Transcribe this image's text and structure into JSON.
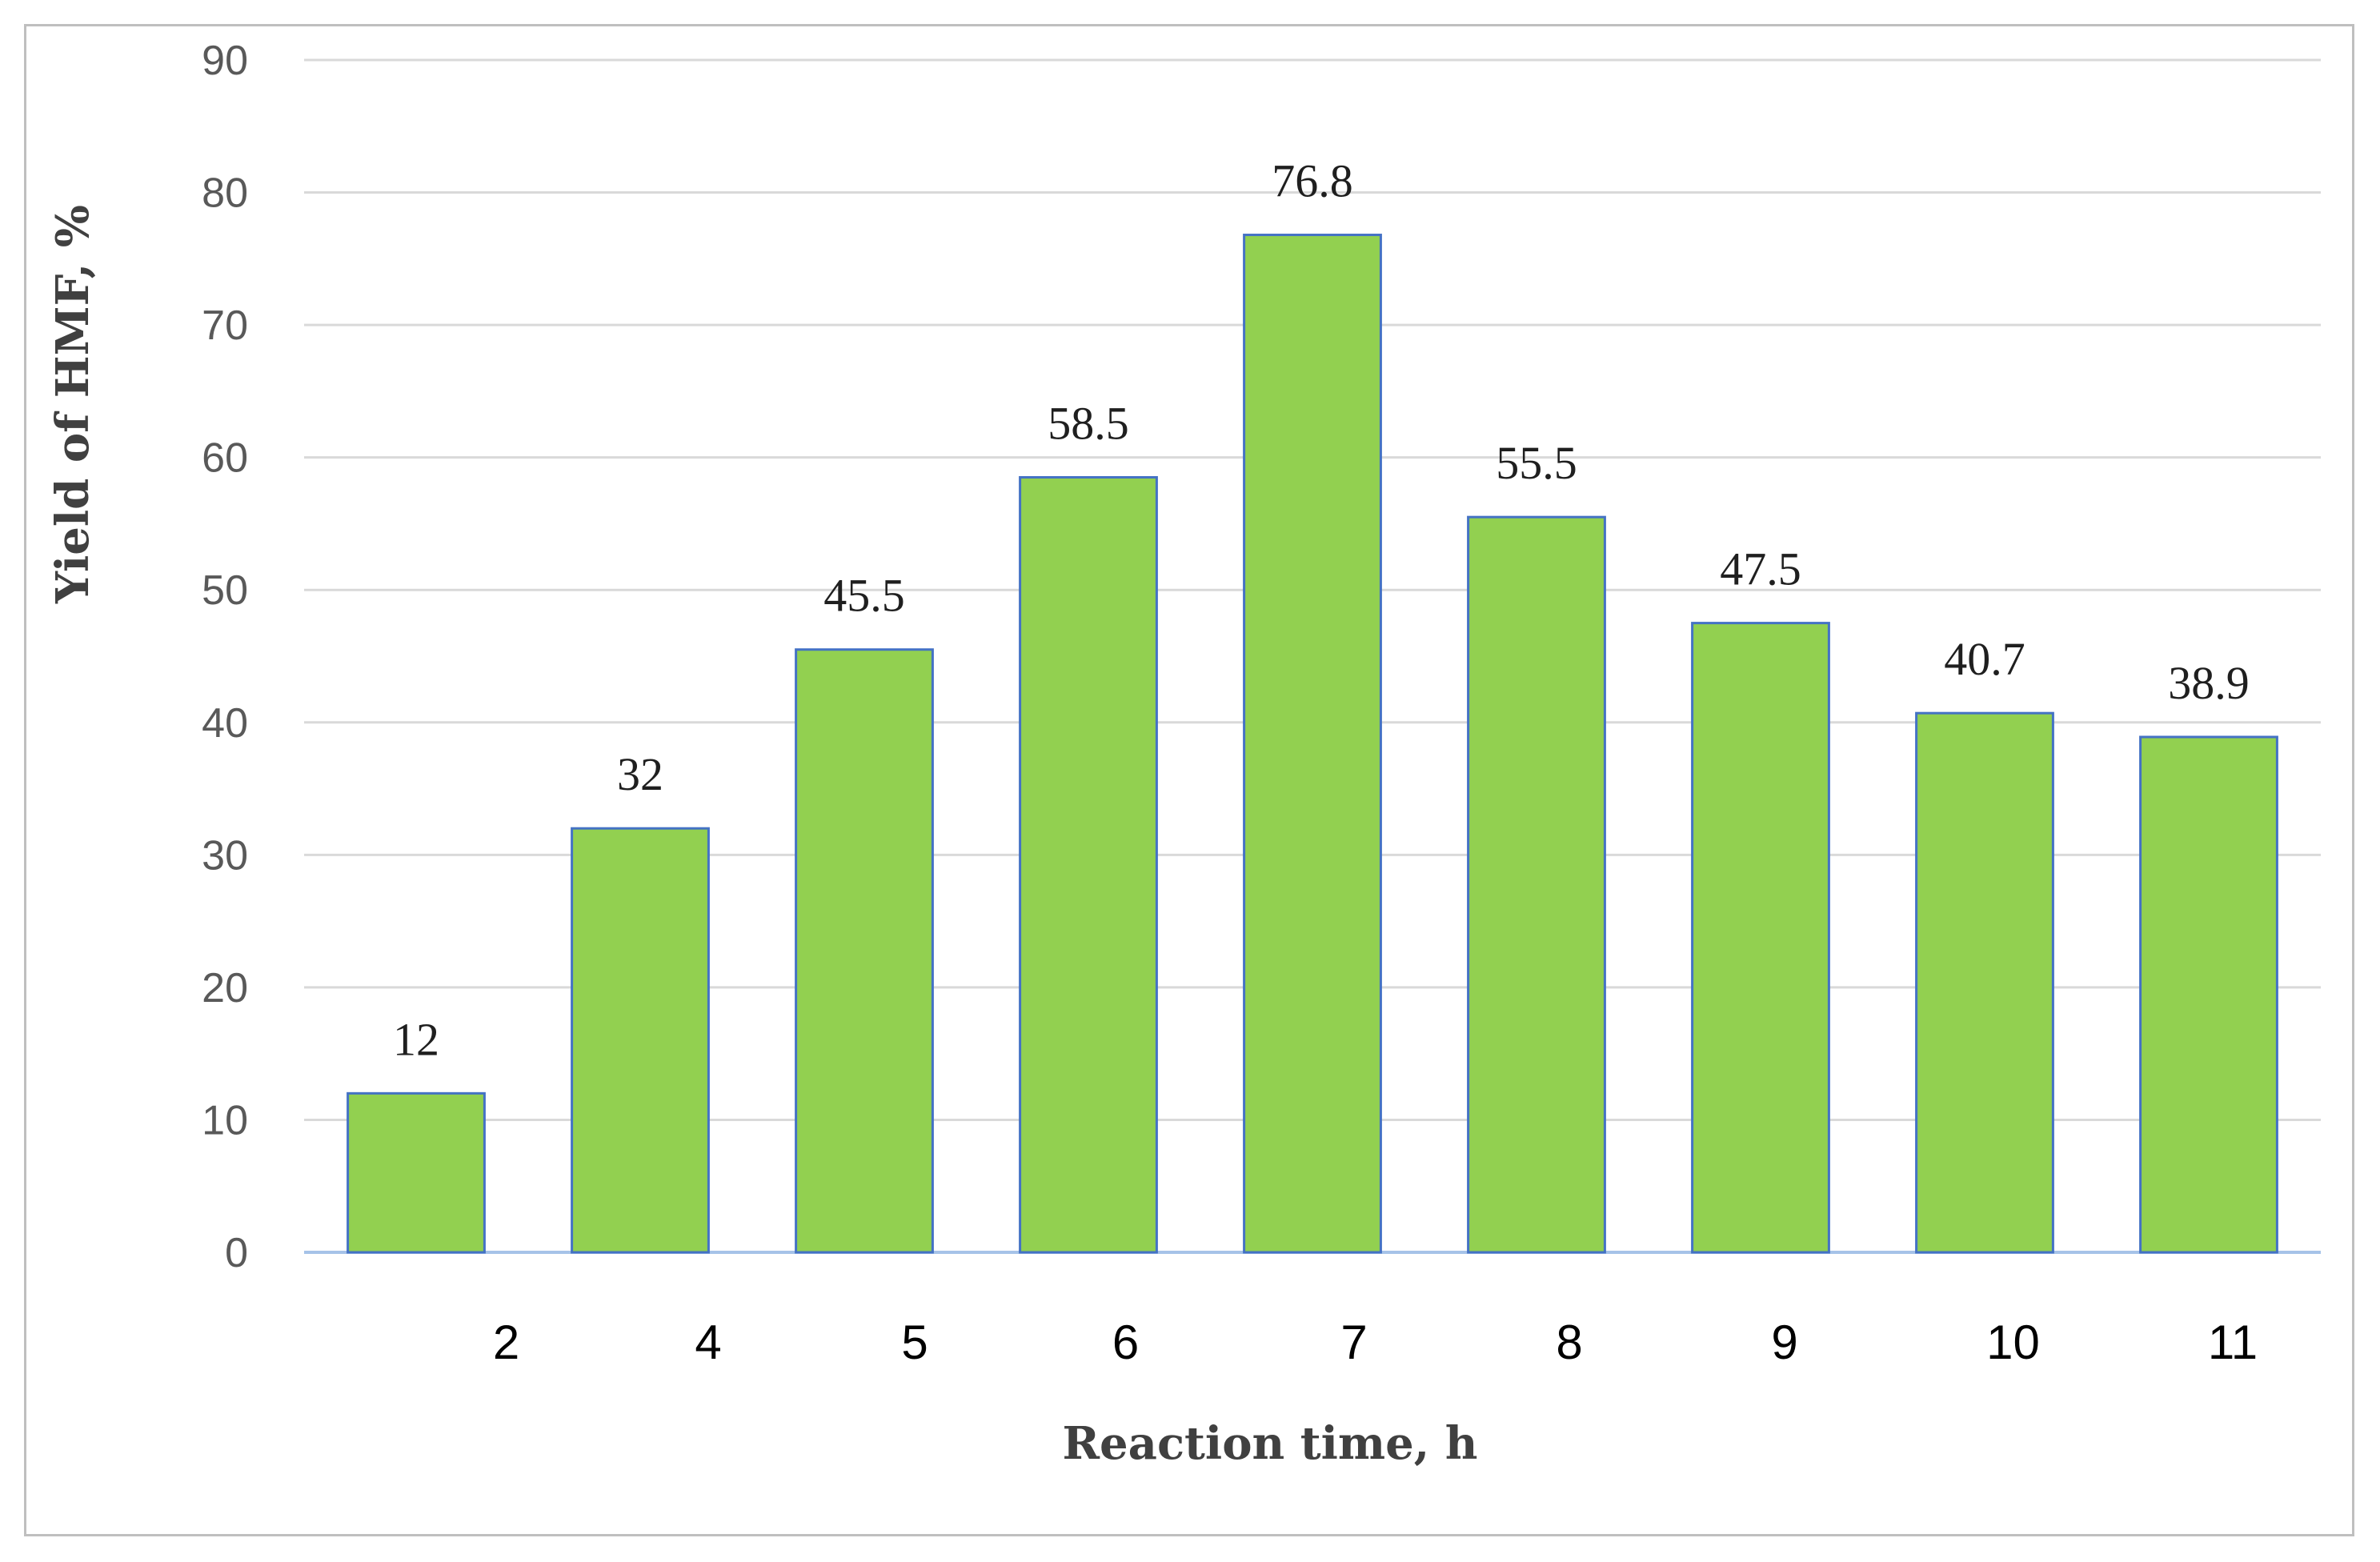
{
  "chart_data": {
    "type": "bar",
    "title": "",
    "xlabel": "Reaction time, h",
    "ylabel": "Yield of HMF, %",
    "categories": [
      "2",
      "4",
      "5",
      "6",
      "7",
      "8",
      "9",
      "10",
      "11"
    ],
    "values": [
      12,
      32,
      45.5,
      58.5,
      76.8,
      55.5,
      47.5,
      40.7,
      38.9
    ],
    "data_labels": [
      "12",
      "32",
      "45.5",
      "58.5",
      "76.8",
      "55.5",
      "47.5",
      "40.7",
      "38.9"
    ],
    "ylim": [
      0,
      90
    ],
    "yticks": [
      "0",
      "10",
      "20",
      "30",
      "40",
      "50",
      "60",
      "70",
      "80",
      "90"
    ],
    "grid": true,
    "legend": "none",
    "colors": {
      "bar_fill": "#92d050",
      "bar_edge": "#4472c4",
      "grid": "#d9d9d9",
      "axis": "#a6c3e8"
    }
  }
}
